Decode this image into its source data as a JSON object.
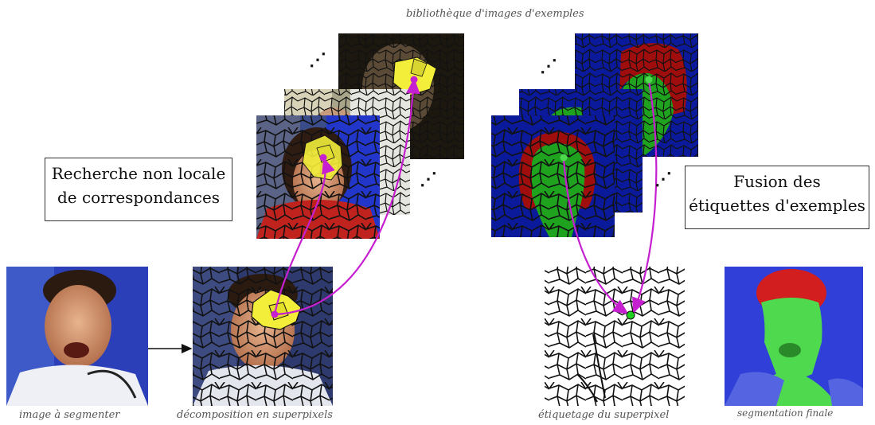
{
  "captions": {
    "library": "bibliothèque d'images d'exemples",
    "input": "image à segmenter",
    "decomposition": "décomposition en superpixels",
    "labeling": "étiquetage du superpixel",
    "final": "segmentation finale"
  },
  "boxes": {
    "search_line1": "Recherche non locale",
    "search_line2": "de correspondances",
    "fusion_line1": "Fusion des",
    "fusion_line2": "étiquettes d'exemples"
  },
  "ellipsis": "⋰",
  "colors": {
    "mosaic_line": "#111111",
    "highlight_yellow": "#f2ee3a",
    "match_arrow": "#c61fd0",
    "label_background": "#0a1a9a",
    "label_hair": "#a00d0d",
    "label_face": "#1fa31f",
    "final_blue": "#2f3fd8",
    "final_red": "#d21e1e",
    "final_green": "#4fd94f"
  }
}
